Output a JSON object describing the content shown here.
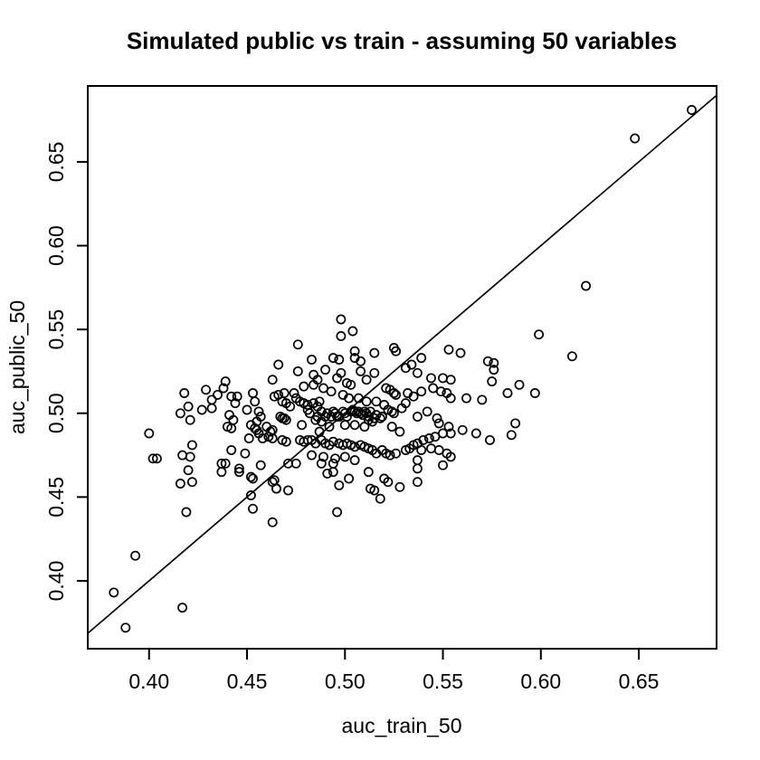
{
  "chart_data": {
    "type": "scatter",
    "title": "Simulated public vs train - assuming 50 variables",
    "xlabel": "auc_train_50",
    "ylabel": "auc_public_50",
    "xlim": [
      0.3687,
      0.6897
    ],
    "ylim": [
      0.3595,
      0.6953
    ],
    "xticks": [
      0.4,
      0.45,
      0.5,
      0.55,
      0.6,
      0.65
    ],
    "yticks": [
      0.4,
      0.45,
      0.5,
      0.55,
      0.6,
      0.65
    ],
    "xtick_labels": [
      "0.40",
      "0.45",
      "0.50",
      "0.55",
      "0.60",
      "0.65"
    ],
    "ytick_labels": [
      "0.40",
      "0.45",
      "0.50",
      "0.55",
      "0.60",
      "0.65"
    ],
    "grid": false,
    "legend": null,
    "reference_line": {
      "type": "identity",
      "slope": 1,
      "intercept": 0
    },
    "marker": {
      "shape": "open-circle",
      "radius_px": 4.6,
      "stroke_width_px": 1.7
    },
    "colors": {
      "foreground": "#000000",
      "background": "#ffffff"
    },
    "points": [
      [
        0.677,
        0.681
      ],
      [
        0.648,
        0.664
      ],
      [
        0.623,
        0.576
      ],
      [
        0.616,
        0.534
      ],
      [
        0.599,
        0.547
      ],
      [
        0.388,
        0.372
      ],
      [
        0.382,
        0.393
      ],
      [
        0.393,
        0.415
      ],
      [
        0.417,
        0.384
      ],
      [
        0.419,
        0.441
      ],
      [
        0.453,
        0.443
      ],
      [
        0.463,
        0.435
      ],
      [
        0.496,
        0.441
      ],
      [
        0.452,
        0.451
      ],
      [
        0.518,
        0.449
      ],
      [
        0.4,
        0.488
      ],
      [
        0.402,
        0.473
      ],
      [
        0.404,
        0.473
      ],
      [
        0.418,
        0.512
      ],
      [
        0.42,
        0.504
      ],
      [
        0.416,
        0.5
      ],
      [
        0.421,
        0.496
      ],
      [
        0.417,
        0.475
      ],
      [
        0.421,
        0.474
      ],
      [
        0.422,
        0.481
      ],
      [
        0.416,
        0.458
      ],
      [
        0.422,
        0.459
      ],
      [
        0.42,
        0.466
      ],
      [
        0.429,
        0.514
      ],
      [
        0.438,
        0.515
      ],
      [
        0.439,
        0.519
      ],
      [
        0.432,
        0.508
      ],
      [
        0.435,
        0.511
      ],
      [
        0.427,
        0.502
      ],
      [
        0.432,
        0.503
      ],
      [
        0.442,
        0.51
      ],
      [
        0.444,
        0.506
      ],
      [
        0.441,
        0.499
      ],
      [
        0.443,
        0.496
      ],
      [
        0.44,
        0.492
      ],
      [
        0.442,
        0.491
      ],
      [
        0.445,
        0.51
      ],
      [
        0.437,
        0.47
      ],
      [
        0.439,
        0.47
      ],
      [
        0.442,
        0.478
      ],
      [
        0.437,
        0.465
      ],
      [
        0.446,
        0.465
      ],
      [
        0.446,
        0.467
      ],
      [
        0.452,
        0.462
      ],
      [
        0.45,
        0.502
      ],
      [
        0.454,
        0.507
      ],
      [
        0.456,
        0.501
      ],
      [
        0.457,
        0.498
      ],
      [
        0.455,
        0.495
      ],
      [
        0.452,
        0.493
      ],
      [
        0.454,
        0.491
      ],
      [
        0.46,
        0.492
      ],
      [
        0.462,
        0.489
      ],
      [
        0.453,
        0.512
      ],
      [
        0.455,
        0.49
      ],
      [
        0.456,
        0.488
      ],
      [
        0.451,
        0.485
      ],
      [
        0.458,
        0.485
      ],
      [
        0.461,
        0.486
      ],
      [
        0.463,
        0.485
      ],
      [
        0.449,
        0.476
      ],
      [
        0.453,
        0.461
      ],
      [
        0.457,
        0.469
      ],
      [
        0.463,
        0.49
      ],
      [
        0.465,
        0.455
      ],
      [
        0.463,
        0.459
      ],
      [
        0.464,
        0.46
      ],
      [
        0.463,
        0.52
      ],
      [
        0.464,
        0.51
      ],
      [
        0.466,
        0.529
      ],
      [
        0.476,
        0.541
      ],
      [
        0.483,
        0.532
      ],
      [
        0.494,
        0.533
      ],
      [
        0.497,
        0.532
      ],
      [
        0.498,
        0.556
      ],
      [
        0.504,
        0.549
      ],
      [
        0.498,
        0.524
      ],
      [
        0.496,
        0.521
      ],
      [
        0.466,
        0.511
      ],
      [
        0.469,
        0.512
      ],
      [
        0.468,
        0.507
      ],
      [
        0.47,
        0.506
      ],
      [
        0.472,
        0.504
      ],
      [
        0.474,
        0.512
      ],
      [
        0.475,
        0.509
      ],
      [
        0.477,
        0.507
      ],
      [
        0.479,
        0.506
      ],
      [
        0.481,
        0.505
      ],
      [
        0.481,
        0.502
      ],
      [
        0.482,
        0.5
      ],
      [
        0.484,
        0.506
      ],
      [
        0.486,
        0.504
      ],
      [
        0.487,
        0.507
      ],
      [
        0.488,
        0.501
      ],
      [
        0.486,
        0.498
      ],
      [
        0.485,
        0.496
      ],
      [
        0.488,
        0.495
      ],
      [
        0.49,
        0.498
      ],
      [
        0.491,
        0.5
      ],
      [
        0.493,
        0.498
      ],
      [
        0.494,
        0.501
      ],
      [
        0.495,
        0.5
      ],
      [
        0.496,
        0.498
      ],
      [
        0.497,
        0.498
      ],
      [
        0.499,
        0.501
      ],
      [
        0.468,
        0.497
      ],
      [
        0.469,
        0.497
      ],
      [
        0.47,
        0.496
      ],
      [
        0.467,
        0.498
      ],
      [
        0.468,
        0.484
      ],
      [
        0.47,
        0.483
      ],
      [
        0.477,
        0.484
      ],
      [
        0.479,
        0.483
      ],
      [
        0.481,
        0.484
      ],
      [
        0.483,
        0.484
      ],
      [
        0.485,
        0.482
      ],
      [
        0.488,
        0.484
      ],
      [
        0.49,
        0.482
      ],
      [
        0.492,
        0.481
      ],
      [
        0.494,
        0.483
      ],
      [
        0.497,
        0.482
      ],
      [
        0.499,
        0.481
      ],
      [
        0.471,
        0.454
      ],
      [
        0.465,
        0.455
      ],
      [
        0.471,
        0.47
      ],
      [
        0.475,
        0.47
      ],
      [
        0.491,
        0.464
      ],
      [
        0.494,
        0.465
      ],
      [
        0.497,
        0.457
      ],
      [
        0.488,
        0.47
      ],
      [
        0.494,
        0.47
      ],
      [
        0.503,
        0.517
      ],
      [
        0.501,
        0.518
      ],
      [
        0.505,
        0.533
      ],
      [
        0.505,
        0.537
      ],
      [
        0.508,
        0.525
      ],
      [
        0.511,
        0.52
      ],
      [
        0.515,
        0.524
      ],
      [
        0.515,
        0.536
      ],
      [
        0.525,
        0.539
      ],
      [
        0.526,
        0.537
      ],
      [
        0.521,
        0.515
      ],
      [
        0.523,
        0.514
      ],
      [
        0.525,
        0.512
      ],
      [
        0.526,
        0.511
      ],
      [
        0.5,
        0.5
      ],
      [
        0.501,
        0.498
      ],
      [
        0.503,
        0.501
      ],
      [
        0.504,
        0.502
      ],
      [
        0.505,
        0.501
      ],
      [
        0.506,
        0.5
      ],
      [
        0.507,
        0.501
      ],
      [
        0.508,
        0.5
      ],
      [
        0.509,
        0.499
      ],
      [
        0.51,
        0.501
      ],
      [
        0.511,
        0.5
      ],
      [
        0.512,
        0.498
      ],
      [
        0.513,
        0.501
      ],
      [
        0.512,
        0.496
      ],
      [
        0.514,
        0.495
      ],
      [
        0.515,
        0.497
      ],
      [
        0.516,
        0.499
      ],
      [
        0.518,
        0.497
      ],
      [
        0.519,
        0.498
      ],
      [
        0.522,
        0.502
      ],
      [
        0.524,
        0.501
      ],
      [
        0.525,
        0.5
      ],
      [
        0.501,
        0.482
      ],
      [
        0.503,
        0.481
      ],
      [
        0.505,
        0.48
      ],
      [
        0.508,
        0.481
      ],
      [
        0.51,
        0.48
      ],
      [
        0.512,
        0.479
      ],
      [
        0.514,
        0.478
      ],
      [
        0.516,
        0.476
      ],
      [
        0.519,
        0.478
      ],
      [
        0.521,
        0.476
      ],
      [
        0.523,
        0.475
      ],
      [
        0.526,
        0.476
      ],
      [
        0.502,
        0.461
      ],
      [
        0.512,
        0.465
      ],
      [
        0.513,
        0.455
      ],
      [
        0.515,
        0.454
      ],
      [
        0.52,
        0.461
      ],
      [
        0.522,
        0.459
      ],
      [
        0.528,
        0.456
      ],
      [
        0.539,
        0.533
      ],
      [
        0.534,
        0.529
      ],
      [
        0.531,
        0.527
      ],
      [
        0.537,
        0.524
      ],
      [
        0.544,
        0.521
      ],
      [
        0.55,
        0.521
      ],
      [
        0.554,
        0.52
      ],
      [
        0.553,
        0.538
      ],
      [
        0.559,
        0.536
      ],
      [
        0.573,
        0.531
      ],
      [
        0.576,
        0.53
      ],
      [
        0.576,
        0.526
      ],
      [
        0.575,
        0.519
      ],
      [
        0.545,
        0.515
      ],
      [
        0.549,
        0.513
      ],
      [
        0.552,
        0.512
      ],
      [
        0.554,
        0.509
      ],
      [
        0.539,
        0.513
      ],
      [
        0.532,
        0.512
      ],
      [
        0.535,
        0.51
      ],
      [
        0.531,
        0.506
      ],
      [
        0.562,
        0.509
      ],
      [
        0.57,
        0.508
      ],
      [
        0.583,
        0.512
      ],
      [
        0.589,
        0.517
      ],
      [
        0.597,
        0.512
      ],
      [
        0.542,
        0.501
      ],
      [
        0.537,
        0.498
      ],
      [
        0.547,
        0.497
      ],
      [
        0.548,
        0.494
      ],
      [
        0.553,
        0.492
      ],
      [
        0.554,
        0.488
      ],
      [
        0.55,
        0.488
      ],
      [
        0.546,
        0.486
      ],
      [
        0.543,
        0.485
      ],
      [
        0.54,
        0.484
      ],
      [
        0.537,
        0.482
      ],
      [
        0.535,
        0.481
      ],
      [
        0.533,
        0.479
      ],
      [
        0.531,
        0.478
      ],
      [
        0.539,
        0.478
      ],
      [
        0.544,
        0.479
      ],
      [
        0.548,
        0.478
      ],
      [
        0.552,
        0.476
      ],
      [
        0.554,
        0.474
      ],
      [
        0.56,
        0.49
      ],
      [
        0.567,
        0.488
      ],
      [
        0.574,
        0.484
      ],
      [
        0.585,
        0.487
      ],
      [
        0.587,
        0.494
      ],
      [
        0.537,
        0.472
      ],
      [
        0.537,
        0.467
      ],
      [
        0.537,
        0.459
      ],
      [
        0.55,
        0.469
      ],
      [
        0.478,
        0.493
      ],
      [
        0.487,
        0.489
      ],
      [
        0.492,
        0.492
      ],
      [
        0.5,
        0.493
      ],
      [
        0.505,
        0.493
      ],
      [
        0.51,
        0.492
      ],
      [
        0.483,
        0.475
      ],
      [
        0.489,
        0.474
      ],
      [
        0.495,
        0.473
      ],
      [
        0.5,
        0.474
      ],
      [
        0.505,
        0.472
      ],
      [
        0.479,
        0.516
      ],
      [
        0.484,
        0.517
      ],
      [
        0.489,
        0.515
      ],
      [
        0.493,
        0.513
      ],
      [
        0.499,
        0.511
      ],
      [
        0.502,
        0.509
      ],
      [
        0.507,
        0.509
      ],
      [
        0.511,
        0.507
      ],
      [
        0.516,
        0.507
      ],
      [
        0.52,
        0.505
      ],
      [
        0.524,
        0.492
      ],
      [
        0.528,
        0.489
      ],
      [
        0.529,
        0.503
      ],
      [
        0.498,
        0.546
      ],
      [
        0.476,
        0.525
      ],
      [
        0.484,
        0.523
      ],
      [
        0.49,
        0.526
      ],
      [
        0.508,
        0.531
      ],
      [
        0.486,
        0.52
      ]
    ]
  }
}
